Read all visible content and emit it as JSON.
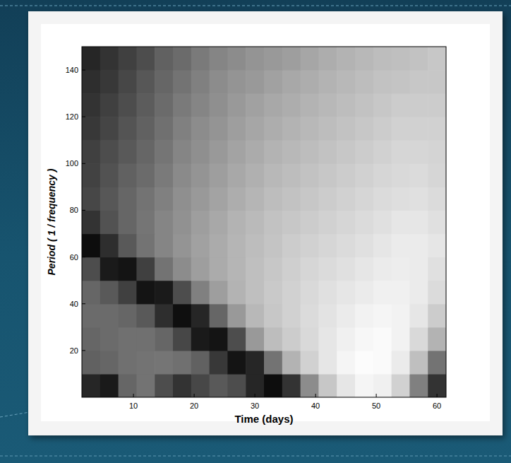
{
  "chart_data": {
    "type": "heatmap",
    "xlabel": "Time (days)",
    "ylabel": "Period ( 1 / frequency )",
    "x": [
      3,
      6,
      9,
      12,
      15,
      18,
      21,
      24,
      27,
      30,
      33,
      36,
      39,
      42,
      45,
      48,
      51,
      54,
      57,
      60
    ],
    "y": [
      5,
      15,
      25,
      35,
      45,
      55,
      65,
      75,
      85,
      95,
      105,
      115,
      125,
      135,
      145
    ],
    "values": [
      [
        15,
        10,
        40,
        45,
        30,
        20,
        28,
        35,
        30,
        15,
        5,
        20,
        55,
        78,
        90,
        96,
        94,
        82,
        50,
        20
      ],
      [
        38,
        40,
        44,
        45,
        46,
        44,
        38,
        22,
        8,
        15,
        45,
        70,
        82,
        90,
        96,
        99,
        98,
        92,
        75,
        45
      ],
      [
        40,
        42,
        44,
        44,
        40,
        28,
        10,
        8,
        30,
        60,
        74,
        80,
        85,
        90,
        94,
        97,
        98,
        95,
        85,
        70
      ],
      [
        42,
        42,
        40,
        35,
        18,
        6,
        15,
        40,
        60,
        72,
        78,
        82,
        86,
        89,
        92,
        95,
        96,
        95,
        90,
        80
      ],
      [
        40,
        35,
        25,
        8,
        10,
        30,
        50,
        62,
        70,
        75,
        79,
        82,
        85,
        88,
        90,
        92,
        94,
        94,
        92,
        86
      ],
      [
        30,
        10,
        8,
        25,
        45,
        55,
        62,
        67,
        71,
        75,
        78,
        81,
        84,
        86,
        88,
        90,
        92,
        93,
        92,
        88
      ],
      [
        5,
        18,
        35,
        45,
        52,
        58,
        63,
        67,
        71,
        74,
        77,
        80,
        82,
        84,
        86,
        88,
        90,
        92,
        92,
        90
      ],
      [
        20,
        32,
        40,
        46,
        52,
        57,
        62,
        66,
        70,
        73,
        76,
        78,
        80,
        82,
        84,
        86,
        88,
        90,
        90,
        88
      ],
      [
        28,
        34,
        40,
        45,
        50,
        56,
        60,
        64,
        68,
        71,
        74,
        76,
        78,
        80,
        82,
        84,
        86,
        87,
        88,
        86
      ],
      [
        26,
        32,
        38,
        42,
        48,
        54,
        58,
        62,
        66,
        69,
        72,
        74,
        76,
        78,
        80,
        82,
        84,
        85,
        86,
        84
      ],
      [
        25,
        30,
        35,
        40,
        46,
        52,
        56,
        60,
        64,
        67,
        70,
        72,
        74,
        76,
        78,
        80,
        82,
        84,
        84,
        83
      ],
      [
        22,
        27,
        33,
        38,
        44,
        50,
        55,
        58,
        62,
        65,
        68,
        70,
        72,
        74,
        76,
        78,
        80,
        82,
        82,
        82
      ],
      [
        20,
        25,
        30,
        36,
        42,
        48,
        52,
        56,
        60,
        63,
        66,
        68,
        70,
        72,
        74,
        76,
        78,
        80,
        80,
        80
      ],
      [
        18,
        22,
        28,
        34,
        40,
        45,
        50,
        55,
        58,
        60,
        63,
        66,
        68,
        70,
        72,
        74,
        76,
        77,
        78,
        78
      ],
      [
        15,
        20,
        25,
        30,
        38,
        42,
        48,
        52,
        55,
        58,
        60,
        62,
        65,
        68,
        70,
        72,
        74,
        75,
        76,
        78
      ]
    ],
    "zlim": [
      0,
      100
    ],
    "xlim": [
      1.5,
      61.5
    ],
    "ylim": [
      0,
      150
    ],
    "xticks": [
      10,
      20,
      30,
      40,
      50,
      60
    ],
    "yticks": [
      20,
      40,
      60,
      80,
      100,
      120,
      140
    ]
  }
}
